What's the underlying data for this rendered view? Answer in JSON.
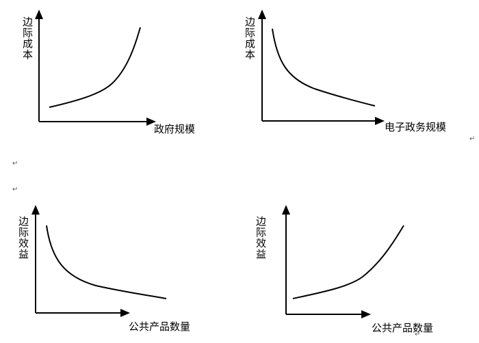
{
  "panels": [
    {
      "y_label": "边际成本",
      "x_label": "政府规模"
    },
    {
      "y_label": "边际成本",
      "x_label": "电子政务规模"
    },
    {
      "y_label": "边际效益",
      "x_label": "公共产品数量"
    },
    {
      "y_label": "边际效益",
      "x_label": "公共产品数量"
    }
  ],
  "paragraph_marks": [
    "↵",
    "↵",
    "↵",
    "↵"
  ]
}
